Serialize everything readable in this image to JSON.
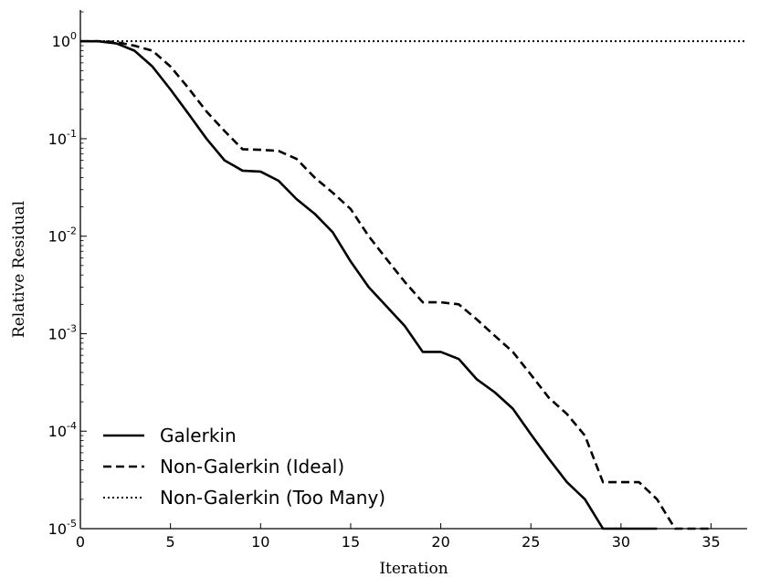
{
  "chart_data": {
    "type": "line",
    "title": "",
    "xlabel": "Iteration",
    "ylabel": "Relative Residual",
    "yscale": "log",
    "xlim": [
      0,
      37
    ],
    "ylim_exponent": [
      -5,
      0.32
    ],
    "xticks": [
      0,
      5,
      10,
      15,
      20,
      25,
      30,
      35
    ],
    "yticks": [
      {
        "base": "10",
        "exp": "0",
        "exponent": 0
      },
      {
        "base": "10",
        "exp": "-1",
        "exponent": -1
      },
      {
        "base": "10",
        "exp": "-2",
        "exponent": -2
      },
      {
        "base": "10",
        "exp": "-3",
        "exponent": -3
      },
      {
        "base": "10",
        "exp": "-4",
        "exponent": -4
      },
      {
        "base": "10",
        "exp": "-5",
        "exponent": -5
      }
    ],
    "legend_position": "bottom-left",
    "series": [
      {
        "name": "Galerkin",
        "style": "solid",
        "x": [
          0,
          1,
          2,
          3,
          4,
          5,
          6,
          7,
          8,
          9,
          10,
          11,
          12,
          13,
          14,
          15,
          16,
          17,
          18,
          19,
          20,
          21,
          22,
          23,
          24,
          25,
          26,
          27,
          28,
          29,
          30,
          31,
          32
        ],
        "y": [
          1.0,
          1.0,
          0.95,
          0.8,
          0.55,
          0.32,
          0.18,
          0.1,
          0.06,
          0.047,
          0.046,
          0.037,
          0.024,
          0.017,
          0.011,
          0.0055,
          0.003,
          0.0019,
          0.0012,
          0.00065,
          0.00065,
          0.00055,
          0.00034,
          0.00025,
          0.00017,
          9.3e-05,
          5.2e-05,
          3e-05,
          2e-05,
          1e-05,
          1e-05,
          1e-05,
          1e-05
        ]
      },
      {
        "name": "Non-Galerkin (Ideal)",
        "style": "dashed",
        "x": [
          0,
          1,
          2,
          3,
          4,
          5,
          6,
          7,
          8,
          9,
          10,
          11,
          12,
          13,
          14,
          15,
          16,
          17,
          18,
          19,
          20,
          21,
          22,
          23,
          24,
          25,
          26,
          27,
          28,
          29,
          30,
          31,
          32,
          33,
          34,
          35
        ],
        "y": [
          1.0,
          1.0,
          0.98,
          0.9,
          0.8,
          0.55,
          0.33,
          0.19,
          0.12,
          0.078,
          0.077,
          0.075,
          0.062,
          0.04,
          0.028,
          0.019,
          0.01,
          0.0058,
          0.0034,
          0.0021,
          0.0021,
          0.002,
          0.0014,
          0.00095,
          0.00065,
          0.00038,
          0.00022,
          0.00015,
          9e-05,
          3e-05,
          3e-05,
          3e-05,
          2e-05,
          1e-05,
          1e-05,
          1e-05
        ]
      },
      {
        "name": "Non-Galerkin (Too Many)",
        "style": "dotted",
        "x": [
          0,
          37
        ],
        "y": [
          1.0,
          1.0
        ]
      }
    ]
  }
}
